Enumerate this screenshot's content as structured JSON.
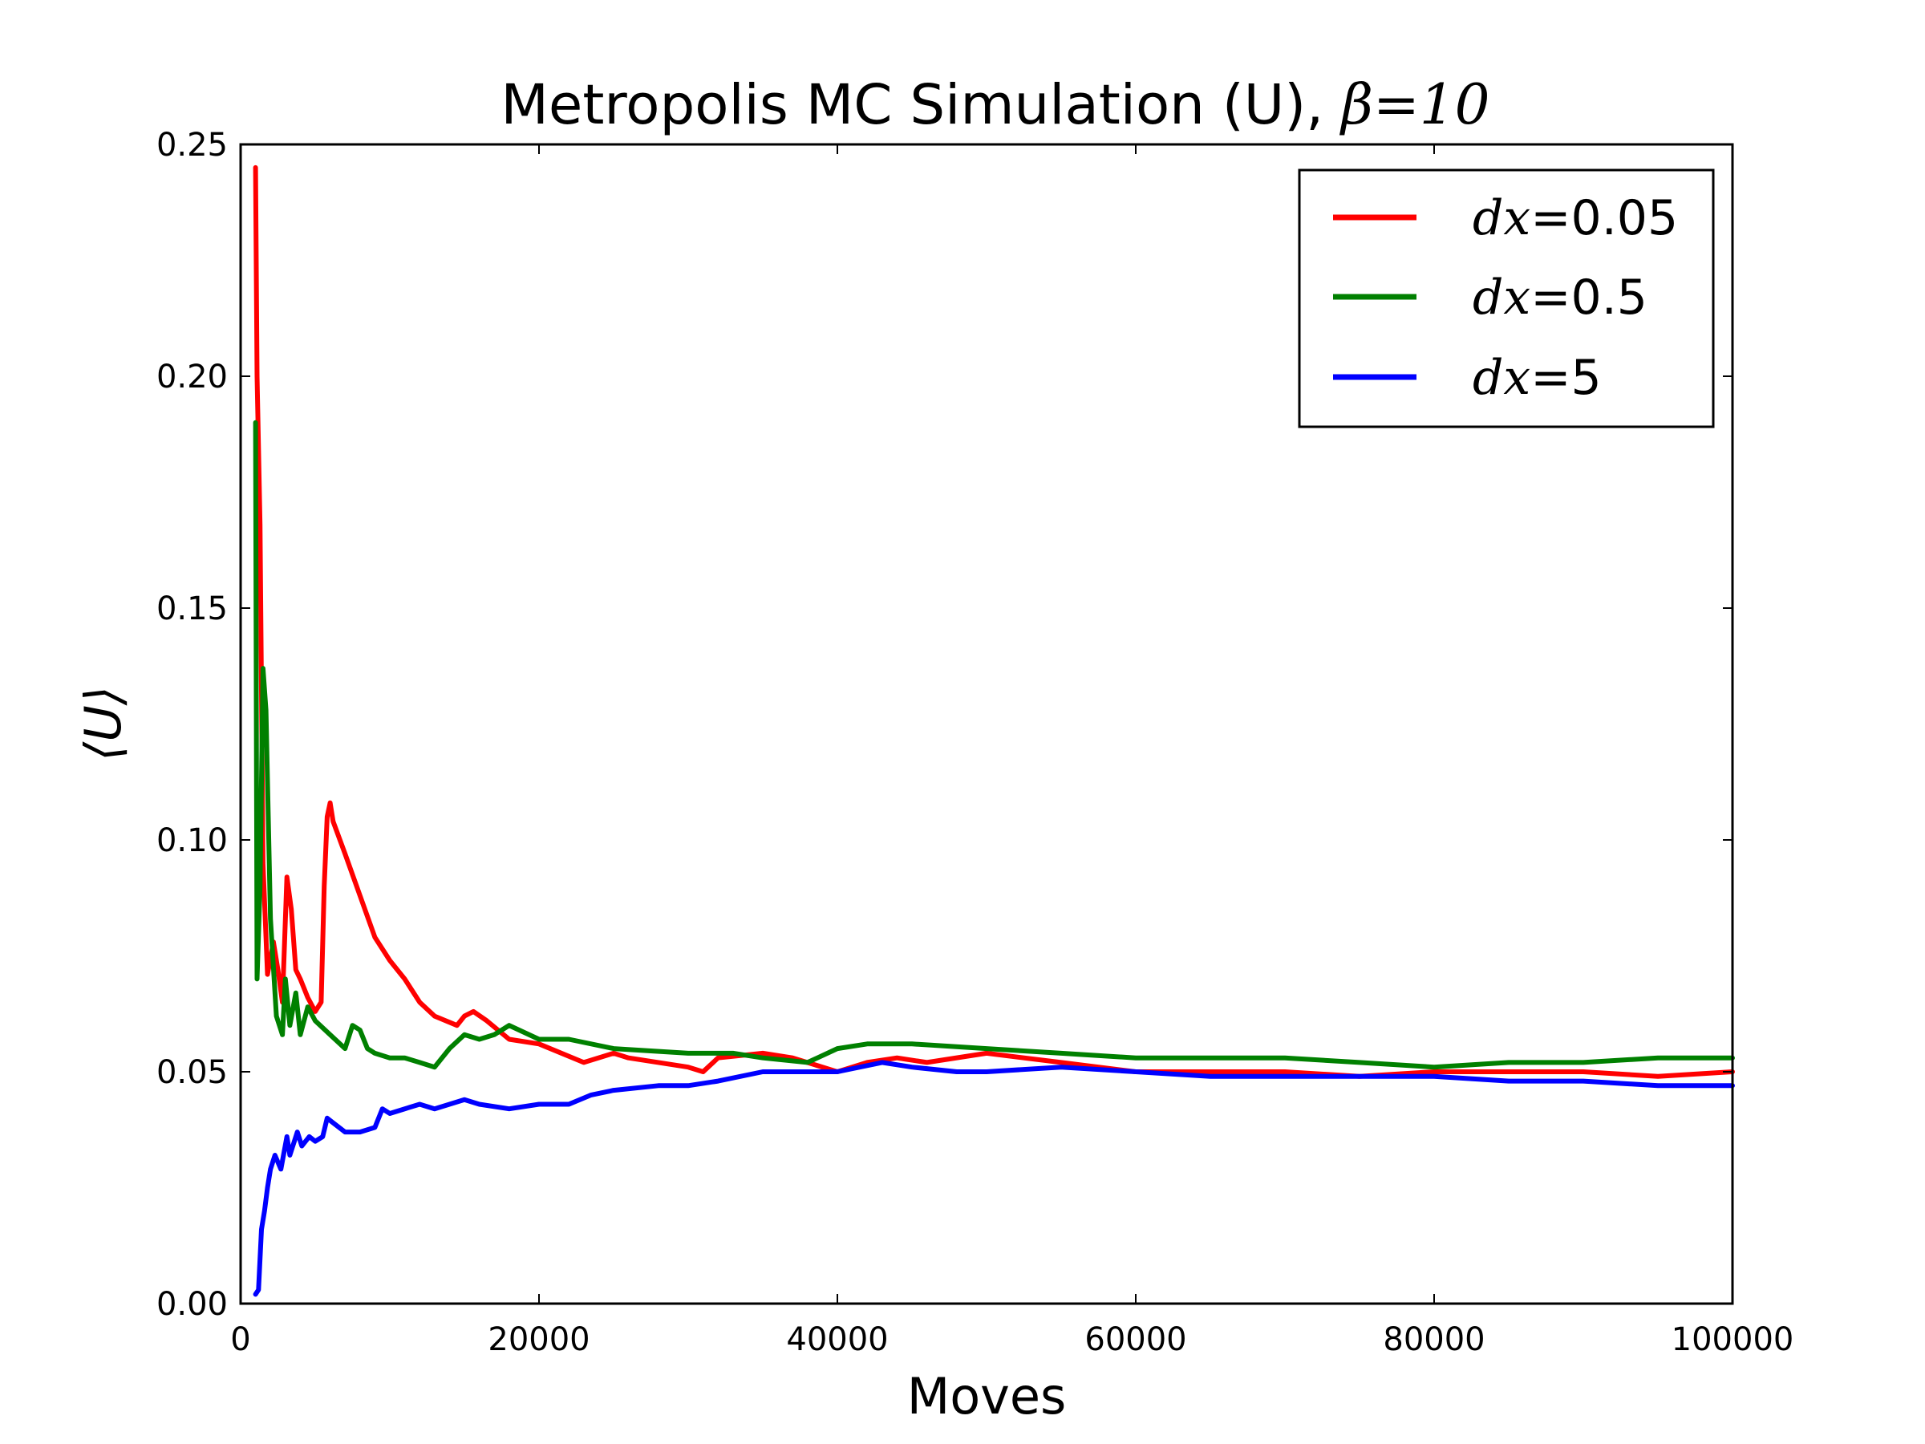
{
  "chart_data": {
    "type": "line",
    "title": {
      "prefix": "Metropolis MC Simulation (U), ",
      "math_var": "β",
      "math_eq": "=",
      "math_val": "10"
    },
    "xlabel": "Moves",
    "ylabel": "⟨U⟩",
    "xlim": [
      0,
      100000
    ],
    "ylim": [
      0,
      0.25
    ],
    "x_ticks": [
      0,
      20000,
      40000,
      60000,
      80000,
      100000
    ],
    "x_tick_labels": [
      "0",
      "20000",
      "40000",
      "60000",
      "80000",
      "100000"
    ],
    "y_ticks": [
      0,
      0.05,
      0.1,
      0.15,
      0.2,
      0.25
    ],
    "y_tick_labels": [
      "0.00",
      "0.05",
      "0.10",
      "0.15",
      "0.20",
      "0.25"
    ],
    "grid": false,
    "legend_position": "top-right",
    "series": [
      {
        "name": "dx=0.05",
        "legend_math": "dx",
        "legend_value": "=0.05",
        "color": "#ff0000",
        "x": [
          1000,
          1100,
          1300,
          1500,
          1800,
          2200,
          2500,
          2800,
          3100,
          3400,
          3700,
          4000,
          4500,
          5000,
          5400,
          5600,
          5800,
          6000,
          6200,
          7000,
          8000,
          9000,
          10000,
          11000,
          12000,
          13000,
          14500,
          15000,
          15600,
          16500,
          18000,
          20000,
          23000,
          25000,
          26000,
          30000,
          31000,
          32000,
          35000,
          37000,
          40000,
          42000,
          44000,
          46000,
          50000,
          55000,
          60000,
          65000,
          70000,
          75000,
          80000,
          85000,
          90000,
          95000,
          100000
        ],
        "y": [
          0.245,
          0.2,
          0.168,
          0.095,
          0.071,
          0.078,
          0.072,
          0.065,
          0.092,
          0.085,
          0.072,
          0.07,
          0.066,
          0.063,
          0.065,
          0.09,
          0.105,
          0.108,
          0.104,
          0.097,
          0.088,
          0.079,
          0.074,
          0.07,
          0.065,
          0.062,
          0.06,
          0.062,
          0.063,
          0.061,
          0.057,
          0.056,
          0.052,
          0.054,
          0.053,
          0.051,
          0.05,
          0.053,
          0.054,
          0.053,
          0.05,
          0.052,
          0.053,
          0.052,
          0.054,
          0.052,
          0.05,
          0.05,
          0.05,
          0.049,
          0.05,
          0.05,
          0.05,
          0.049,
          0.05
        ]
      },
      {
        "name": "dx=0.5",
        "legend_math": "dx",
        "legend_value": "=0.5",
        "color": "#008000",
        "x": [
          1000,
          1100,
          1300,
          1500,
          1700,
          2000,
          2400,
          2800,
          3000,
          3300,
          3700,
          4000,
          4500,
          5000,
          6000,
          7000,
          7500,
          8000,
          8500,
          9000,
          10000,
          11000,
          12000,
          13000,
          14000,
          15000,
          16000,
          17000,
          18000,
          20000,
          22000,
          25000,
          30000,
          33000,
          35000,
          38000,
          40000,
          42000,
          45000,
          50000,
          55000,
          60000,
          65000,
          70000,
          75000,
          80000,
          85000,
          90000,
          95000,
          100000
        ],
        "y": [
          0.19,
          0.07,
          0.09,
          0.137,
          0.128,
          0.083,
          0.062,
          0.058,
          0.07,
          0.06,
          0.067,
          0.058,
          0.064,
          0.061,
          0.058,
          0.055,
          0.06,
          0.059,
          0.055,
          0.054,
          0.053,
          0.053,
          0.052,
          0.051,
          0.055,
          0.058,
          0.057,
          0.058,
          0.06,
          0.057,
          0.057,
          0.055,
          0.054,
          0.054,
          0.053,
          0.052,
          0.055,
          0.056,
          0.056,
          0.055,
          0.054,
          0.053,
          0.053,
          0.053,
          0.052,
          0.051,
          0.052,
          0.052,
          0.053,
          0.053
        ]
      },
      {
        "name": "dx=5",
        "legend_math": "dx",
        "legend_value": "=5",
        "color": "#0000ff",
        "x": [
          1000,
          1200,
          1400,
          1600,
          1800,
          2000,
          2300,
          2700,
          3100,
          3300,
          3800,
          4100,
          4600,
          5000,
          5500,
          5800,
          6200,
          7000,
          8000,
          9000,
          9500,
          10000,
          11000,
          12000,
          13000,
          14000,
          15000,
          16000,
          18000,
          20000,
          22000,
          23500,
          25000,
          28000,
          30000,
          32000,
          35000,
          38000,
          40000,
          43000,
          45000,
          48000,
          50000,
          55000,
          60000,
          65000,
          70000,
          75000,
          80000,
          85000,
          90000,
          95000,
          100000
        ],
        "y": [
          0.002,
          0.003,
          0.016,
          0.02,
          0.025,
          0.029,
          0.032,
          0.029,
          0.036,
          0.032,
          0.037,
          0.034,
          0.036,
          0.035,
          0.036,
          0.04,
          0.039,
          0.037,
          0.037,
          0.038,
          0.042,
          0.041,
          0.042,
          0.043,
          0.042,
          0.043,
          0.044,
          0.043,
          0.042,
          0.043,
          0.043,
          0.045,
          0.046,
          0.047,
          0.047,
          0.048,
          0.05,
          0.05,
          0.05,
          0.052,
          0.051,
          0.05,
          0.05,
          0.051,
          0.05,
          0.049,
          0.049,
          0.049,
          0.049,
          0.048,
          0.048,
          0.047,
          0.047
        ]
      }
    ]
  }
}
